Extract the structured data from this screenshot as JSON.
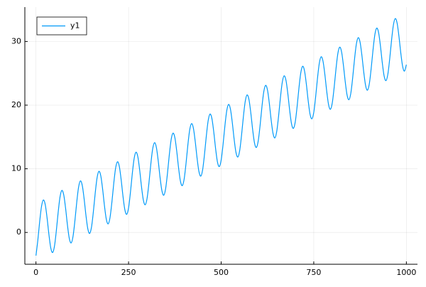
{
  "chart_data": {
    "type": "line",
    "x": [
      0,
      5,
      10,
      15,
      20,
      25,
      30,
      35,
      40,
      45,
      50,
      55,
      60,
      65,
      70,
      75,
      80,
      85,
      90,
      95,
      100,
      105,
      110,
      115,
      120,
      125,
      130,
      135,
      140,
      145,
      150,
      155,
      160,
      165,
      170,
      175,
      180,
      185,
      190,
      195,
      200,
      205,
      210,
      215,
      220,
      225,
      230,
      235,
      240,
      245,
      250,
      255,
      260,
      265,
      270,
      275,
      280,
      285,
      290,
      295,
      300,
      305,
      310,
      315,
      320,
      325,
      330,
      335,
      340,
      345,
      350,
      355,
      360,
      365,
      370,
      375,
      380,
      385,
      390,
      395,
      400,
      405,
      410,
      415,
      420,
      425,
      430,
      435,
      440,
      445,
      450,
      455,
      460,
      465,
      470,
      475,
      480,
      485,
      490,
      495,
      500,
      505,
      510,
      515,
      520,
      525,
      530,
      535,
      540,
      545,
      550,
      555,
      560,
      565,
      570,
      575,
      580,
      585,
      590,
      595,
      600,
      605,
      610,
      615,
      620,
      625,
      630,
      635,
      640,
      645,
      650,
      655,
      660,
      665,
      670,
      675,
      680,
      685,
      690,
      695,
      700,
      705,
      710,
      715,
      720,
      725,
      730,
      735,
      740,
      745,
      750,
      755,
      760,
      765,
      770,
      775,
      780,
      785,
      790,
      795,
      800,
      805,
      810,
      815,
      820,
      825,
      830,
      835,
      840,
      845,
      850,
      855,
      860,
      865,
      870,
      875,
      880,
      885,
      890,
      895,
      900,
      905,
      910,
      915,
      920,
      925,
      930,
      935,
      940,
      945,
      950,
      955,
      960,
      965,
      970,
      975,
      980,
      985,
      990,
      995,
      1000
    ],
    "series": [
      {
        "name": "y1",
        "color": "#009af9",
        "values": [
          -3.64,
          -1.24,
          1.69,
          4.09,
          5.1,
          4.39,
          2.29,
          -0.34,
          -2.44,
          -3.15,
          -2.14,
          0.26,
          3.19,
          5.59,
          6.6,
          5.89,
          3.79,
          1.16,
          -0.94,
          -1.65,
          -0.64,
          1.76,
          4.69,
          7.09,
          8.1,
          7.39,
          5.29,
          2.66,
          0.56,
          -0.15,
          0.86,
          3.26,
          6.19,
          8.59,
          9.6,
          8.89,
          6.79,
          4.16,
          2.06,
          1.35,
          2.36,
          4.76,
          7.69,
          10.09,
          11.1,
          10.39,
          8.29,
          5.66,
          3.56,
          2.85,
          3.86,
          6.26,
          9.19,
          11.59,
          12.6,
          11.89,
          9.79,
          7.16,
          5.06,
          4.35,
          5.36,
          7.76,
          10.69,
          13.09,
          14.1,
          13.39,
          11.29,
          8.66,
          6.56,
          5.85,
          6.86,
          9.26,
          12.19,
          14.59,
          15.6,
          14.89,
          12.79,
          10.16,
          8.06,
          7.35,
          8.36,
          10.76,
          13.69,
          16.09,
          17.1,
          16.39,
          14.29,
          11.66,
          9.56,
          8.85,
          9.86,
          12.26,
          15.19,
          17.59,
          18.6,
          17.89,
          15.79,
          13.16,
          11.06,
          10.35,
          11.36,
          13.76,
          16.69,
          19.09,
          20.1,
          19.39,
          17.29,
          14.66,
          12.56,
          11.85,
          12.86,
          15.26,
          18.19,
          20.59,
          21.6,
          20.89,
          18.79,
          16.16,
          14.06,
          13.35,
          14.36,
          16.76,
          19.69,
          22.09,
          23.1,
          22.39,
          20.29,
          17.66,
          15.56,
          14.85,
          15.86,
          18.26,
          21.19,
          23.59,
          24.6,
          23.89,
          21.79,
          19.16,
          17.06,
          16.35,
          17.36,
          19.76,
          22.69,
          25.09,
          26.1,
          25.39,
          23.29,
          20.66,
          18.56,
          17.85,
          18.86,
          21.26,
          24.19,
          26.59,
          27.6,
          26.89,
          24.79,
          22.16,
          20.06,
          19.35,
          20.36,
          22.76,
          25.69,
          28.09,
          29.1,
          28.39,
          26.29,
          23.66,
          21.56,
          20.85,
          21.86,
          24.26,
          27.19,
          29.59,
          30.6,
          29.89,
          27.79,
          25.16,
          23.06,
          22.35,
          23.36,
          25.76,
          28.69,
          31.09,
          32.1,
          31.39,
          29.29,
          26.66,
          24.56,
          23.85,
          24.86,
          27.26,
          30.19,
          32.59,
          33.6,
          32.89,
          30.79,
          28.16,
          26.06,
          25.35,
          26.36
        ]
      }
    ],
    "xlim": [
      -30,
      1030
    ],
    "ylim": [
      -5,
      35.4
    ],
    "xticks": [
      0,
      250,
      500,
      750,
      1000
    ],
    "yticks": [
      0,
      10,
      20,
      30
    ],
    "grid": true,
    "legend": "topleft"
  }
}
